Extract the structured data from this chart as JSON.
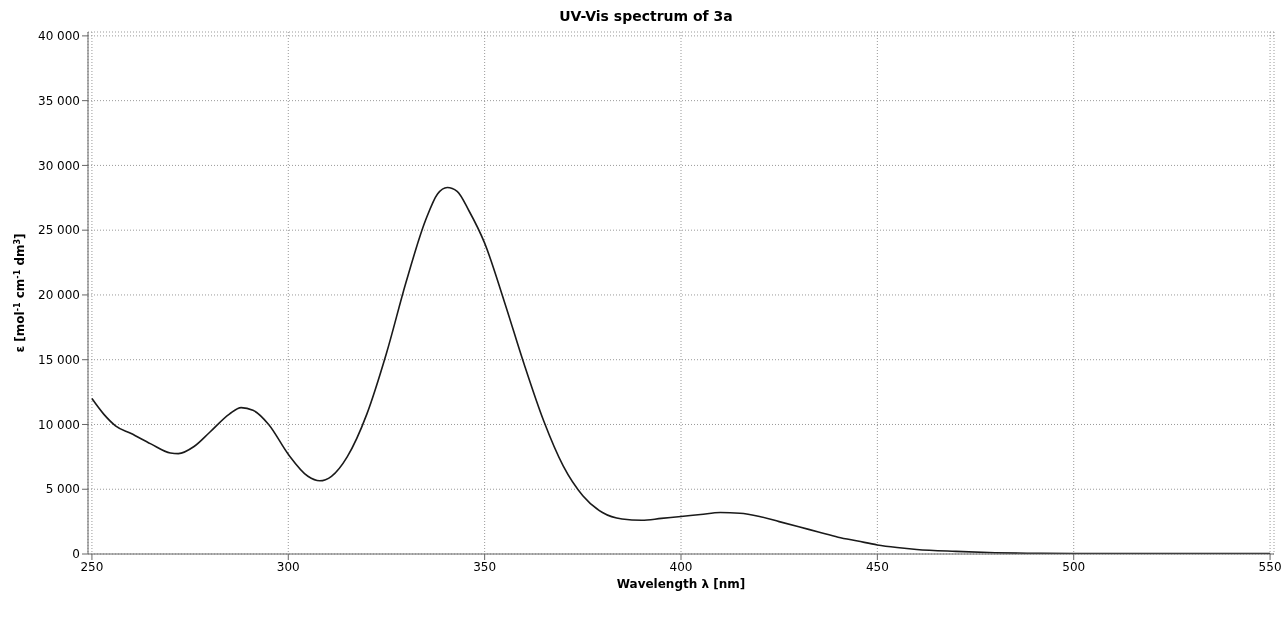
{
  "chart_data": {
    "type": "line",
    "title": "UV-Vis spectrum of 3a",
    "xlabel": "Wavelength λ [nm]",
    "ylabel": "ε [mol$^{-1}$ cm$^{-1}$ dm$^{3}$]",
    "x": [
      250,
      253,
      256,
      260,
      265,
      270,
      272,
      276,
      280,
      285,
      288,
      291,
      295,
      300,
      305,
      308,
      311,
      315,
      320,
      325,
      330,
      335,
      338,
      340.5,
      343,
      346,
      350,
      355,
      360,
      365,
      370,
      375,
      380,
      385,
      390,
      395,
      400,
      405,
      410,
      415,
      420,
      425,
      430,
      435,
      440,
      445,
      450,
      455,
      460,
      470,
      480,
      490,
      500,
      550
    ],
    "series": [
      {
        "color": "#1a1a1a",
        "values": [
          12000,
          10800,
          9900,
          9300,
          8500,
          7800,
          7750,
          8300,
          9400,
          10800,
          11300,
          11100,
          10000,
          7700,
          6000,
          5650,
          6000,
          7500,
          10800,
          15500,
          21000,
          25800,
          27800,
          28300,
          28000,
          26500,
          24000,
          19500,
          14700,
          10300,
          6800,
          4500,
          3200,
          2700,
          2600,
          2750,
          2900,
          3050,
          3200,
          3150,
          2900,
          2500,
          2100,
          1700,
          1300,
          1000,
          700,
          500,
          350,
          200,
          100,
          50,
          30,
          30
        ]
      }
    ],
    "xlim": [
      249,
      551
    ],
    "xticks": [
      250,
      300,
      350,
      400,
      450,
      500,
      550
    ],
    "ylim": [
      0,
      40300
    ],
    "yticks": [
      {
        "value": 0,
        "label": "0"
      },
      {
        "value": 5000,
        "label": "5 000"
      },
      {
        "value": 10000,
        "label": "10 000"
      },
      {
        "value": 15000,
        "label": "15 000"
      },
      {
        "value": 20000,
        "label": "20 000"
      },
      {
        "value": 25000,
        "label": "25 000"
      },
      {
        "value": 30000,
        "label": "30 000"
      },
      {
        "value": 35000,
        "label": "35 000"
      },
      {
        "value": 40000,
        "label": "40 000"
      }
    ],
    "grid": true,
    "marker": "none",
    "line_style": "solid",
    "legend": false
  }
}
